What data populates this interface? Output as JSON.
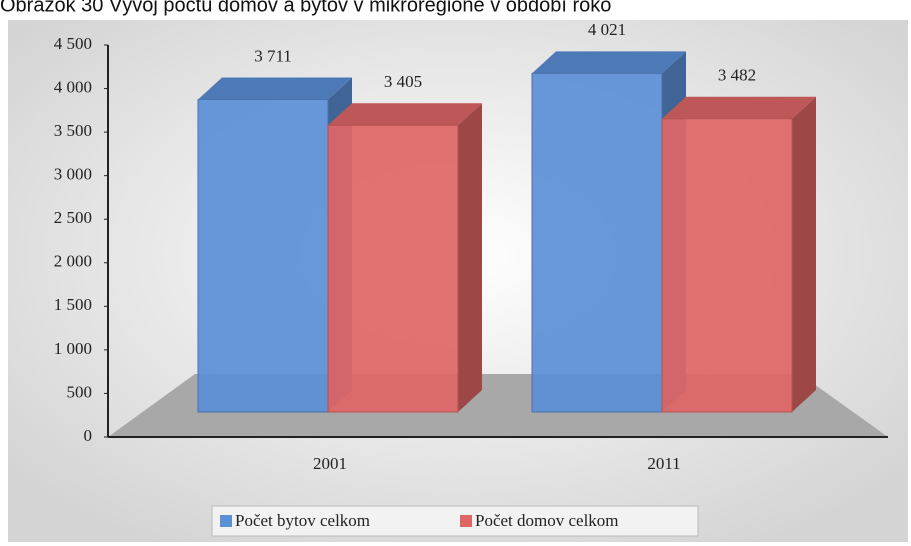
{
  "chart_data": {
    "type": "bar3d",
    "title": "Obrázok 30 Vývoj počtu domov a bytov v mikroregióne v období roko",
    "categories": [
      "2001",
      "2011"
    ],
    "series": [
      {
        "name": "Počet bytov celkom",
        "color": "#5b8fd6",
        "values": [
          3711,
          4021
        ],
        "value_labels": [
          "3 711",
          "4 021"
        ]
      },
      {
        "name": "Počet domov celkom",
        "color": "#e06666",
        "values": [
          3405,
          3482
        ],
        "value_labels": [
          "3 405",
          "3 482"
        ]
      }
    ],
    "ylim": [
      0,
      4500
    ],
    "yticks": [
      0,
      500,
      {
        "value": 1000,
        "label": "1 000"
      },
      {
        "value": 1500,
        "label": "1 500"
      },
      {
        "value": 2000,
        "label": "2 000"
      },
      {
        "value": 2500,
        "label": "2 500"
      },
      {
        "value": 3000,
        "label": "3 000"
      },
      {
        "value": 3500,
        "label": "3 500"
      },
      {
        "value": 4000,
        "label": "4 000"
      },
      {
        "value": 4500,
        "label": "4 500"
      }
    ],
    "legend": "bottom"
  }
}
